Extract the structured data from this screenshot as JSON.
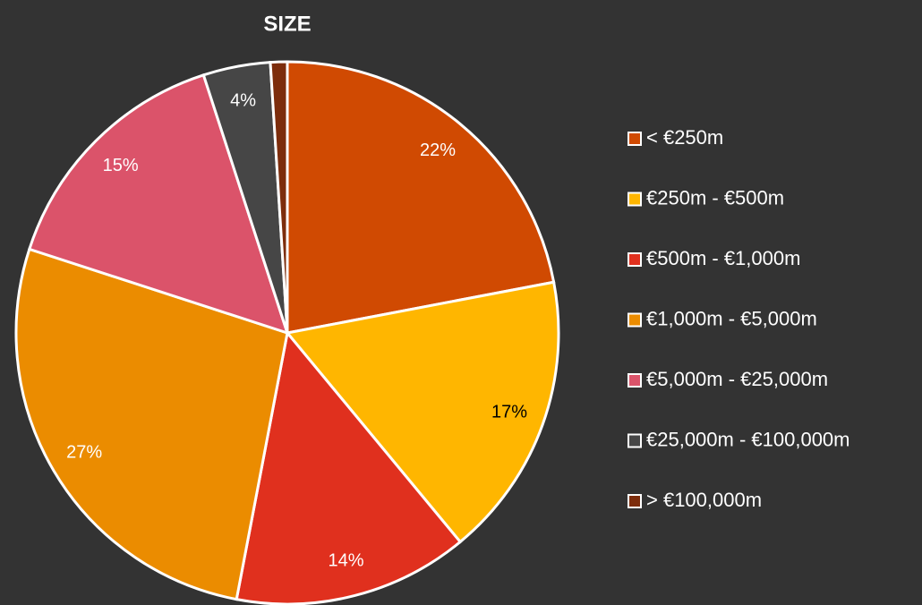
{
  "chart_data": {
    "type": "pie",
    "title": "SIZE",
    "categories": [
      "< €250m",
      "€250m - €500m",
      "€500m - €1,000m",
      "€1,000m - €5,000m",
      "€5,000m - €25,000m",
      "€25,000m - €100,000m",
      "> €100,000m"
    ],
    "values": [
      22,
      17,
      14,
      27,
      15,
      4,
      1
    ],
    "value_labels": [
      "22%",
      "17%",
      "14%",
      "27%",
      "15%",
      "4%",
      null
    ],
    "colors": [
      "#d04a02",
      "#ffb600",
      "#e0301e",
      "#eb8c00",
      "#db536a",
      "#464646",
      "#7d2d0c"
    ],
    "legend": "right"
  }
}
